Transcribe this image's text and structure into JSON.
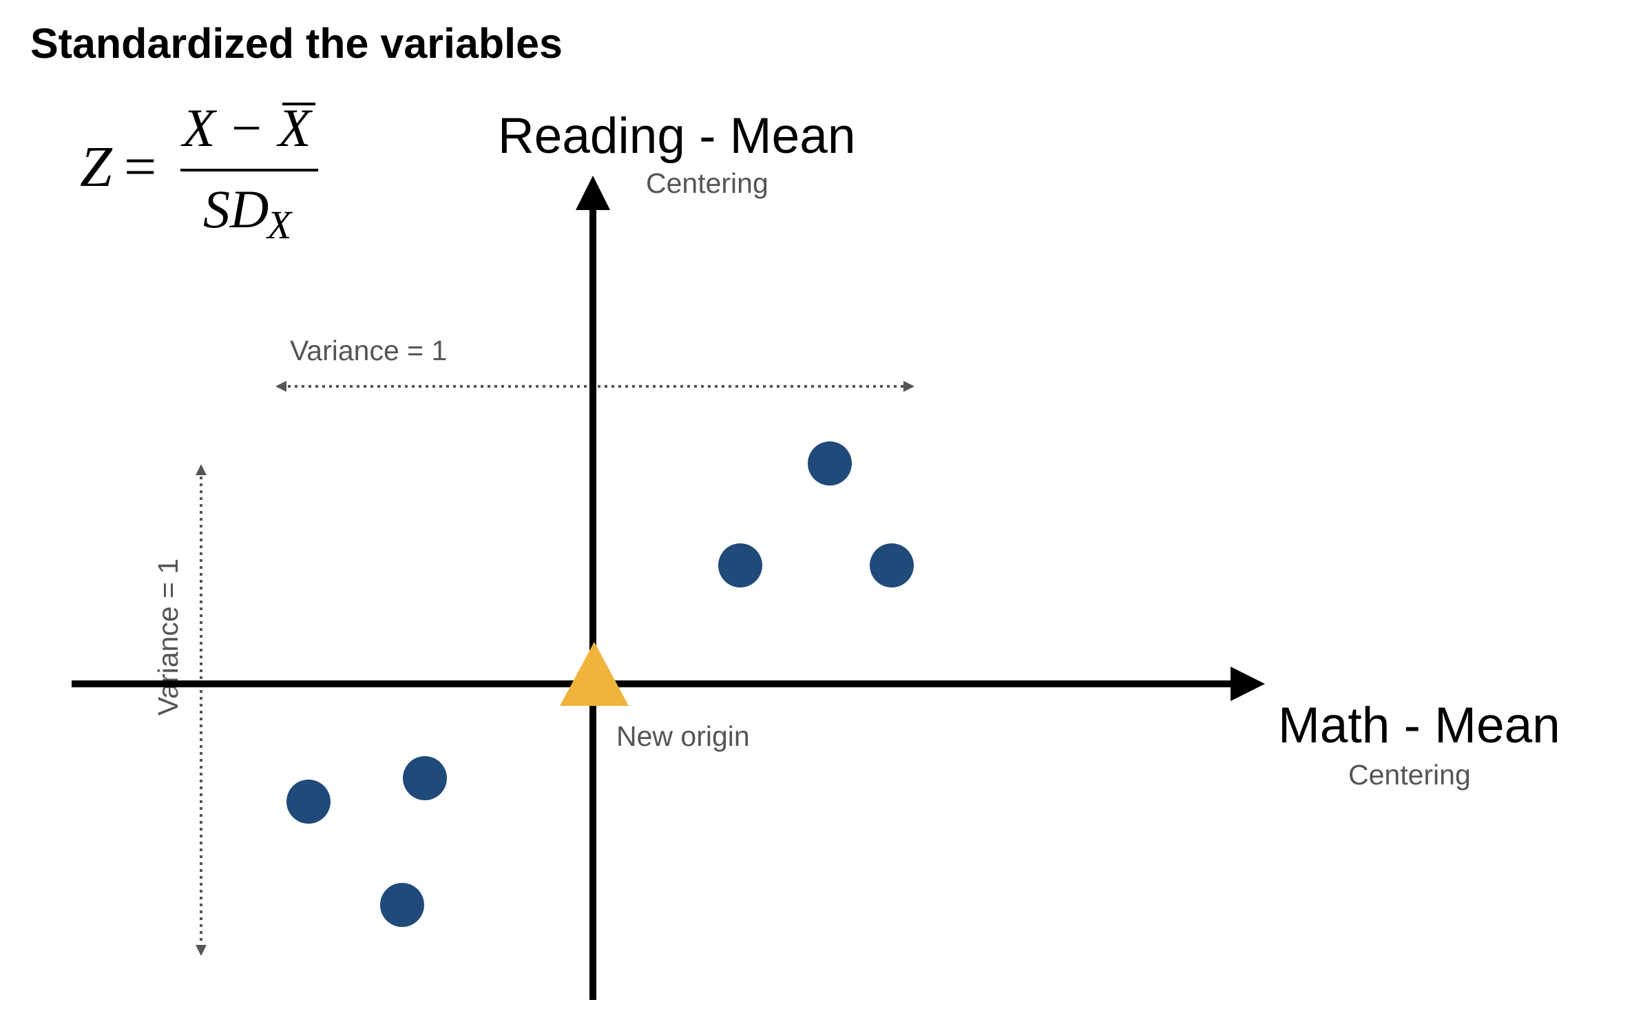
{
  "title": "Standardized the variables",
  "formula": {
    "lhs": "Z",
    "equals": "=",
    "numerator_x": "X",
    "numerator_minus": "−",
    "numerator_xbar": "X",
    "denominator_sd": "SD",
    "denominator_sub": "X"
  },
  "y_axis": {
    "title": "Reading - Mean",
    "subtitle": "Centering"
  },
  "x_axis": {
    "title": "Math - Mean",
    "subtitle": "Centering"
  },
  "variance_horizontal_label": "Variance = 1",
  "variance_vertical_label": "Variance = 1",
  "origin_label": "New origin",
  "colors": {
    "axis": "#000000",
    "point": "#1f4a7a",
    "origin_marker": "#f0b43c",
    "variance_arrow": "#555555"
  },
  "icons": {
    "origin_marker": "triangle-marker",
    "data_point": "circle-marker"
  }
}
